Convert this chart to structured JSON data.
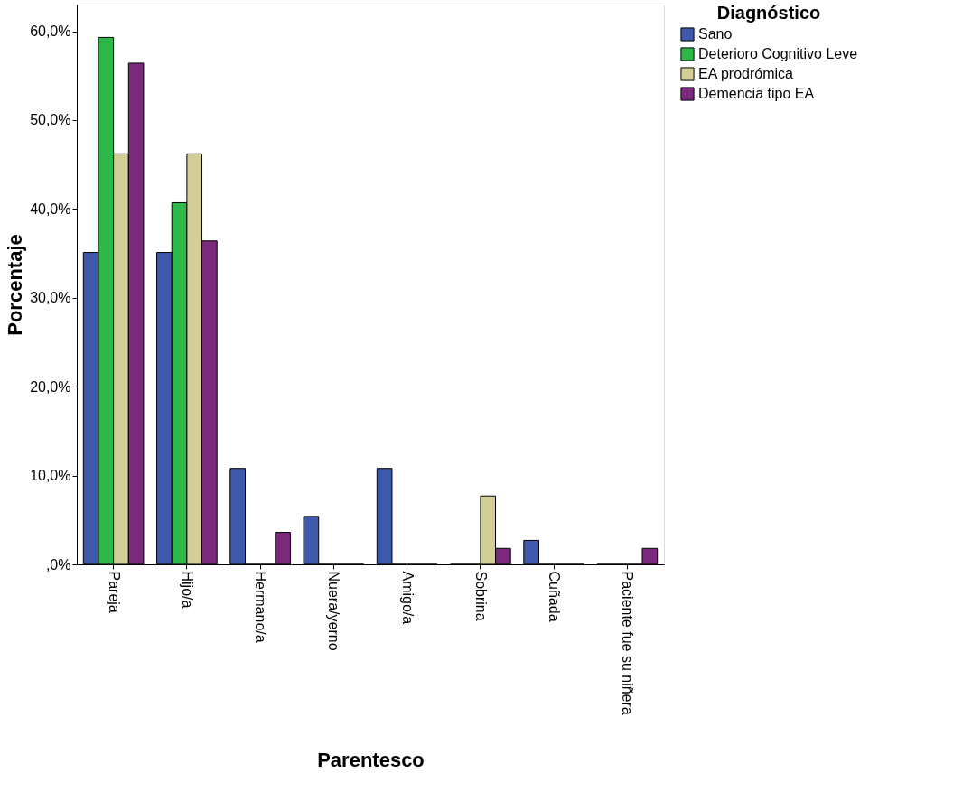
{
  "chart_data": {
    "type": "bar",
    "xlabel": "Parentesco",
    "ylabel": "Porcentaje",
    "legend_title": "Diagnóstico",
    "categories": [
      "Pareja",
      "Hijo/a",
      "Hermano/a",
      "Nuera/yerno",
      "Amigo/a",
      "Sobrina",
      "Cuñada",
      "Paciente fue su niñera"
    ],
    "series": [
      {
        "name": "Sano",
        "color": "#3e58ac",
        "values": [
          35.1,
          35.1,
          10.8,
          5.4,
          10.8,
          0,
          2.7,
          0
        ]
      },
      {
        "name": "Deterioro Cognitivo Leve",
        "color": "#2eb848",
        "values": [
          59.3,
          40.7,
          0,
          0,
          0,
          0,
          0,
          0
        ]
      },
      {
        "name": "EA prodrómica",
        "color": "#d3ce97",
        "values": [
          46.2,
          46.2,
          0,
          0,
          0,
          7.7,
          0,
          0
        ]
      },
      {
        "name": "Demencia tipo EA",
        "color": "#7c287d",
        "values": [
          56.4,
          36.4,
          3.6,
          0,
          0,
          1.8,
          0,
          1.8
        ]
      }
    ],
    "ylim": [
      0,
      63
    ],
    "yticks": [
      {
        "value": 0,
        "label": ",0%"
      },
      {
        "value": 10,
        "label": "10,0%"
      },
      {
        "value": 20,
        "label": "20,0%"
      },
      {
        "value": 30,
        "label": "30,0%"
      },
      {
        "value": 40,
        "label": "40,0%"
      },
      {
        "value": 50,
        "label": "50,0%"
      },
      {
        "value": 60,
        "label": "60,0%"
      }
    ],
    "grid": false,
    "legend": "top right"
  }
}
